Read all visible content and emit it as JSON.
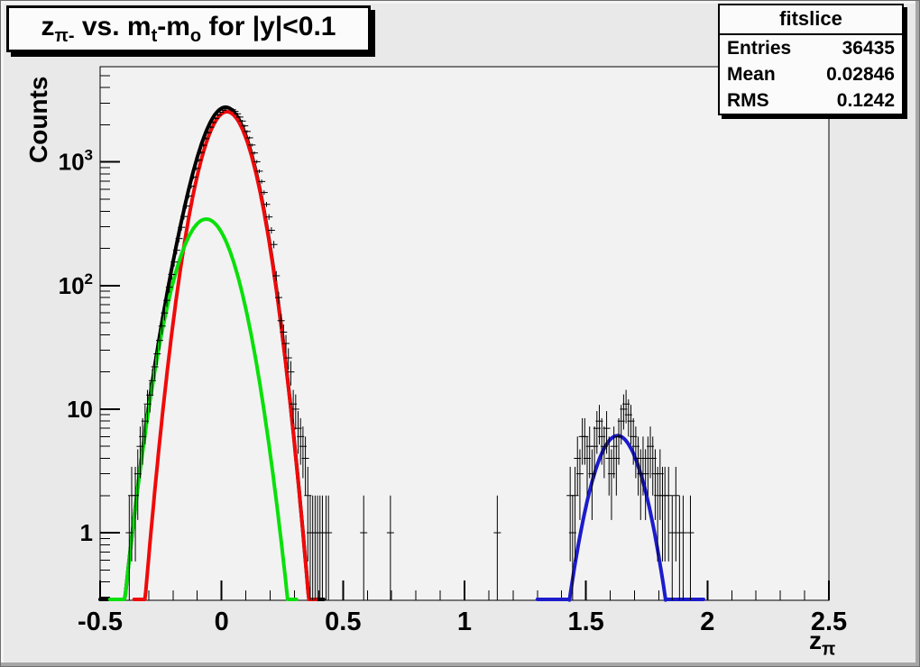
{
  "title": {
    "parts": [
      "z",
      "π-",
      " vs. m",
      "t",
      "-m",
      "o",
      " for |y|<0.1"
    ]
  },
  "stats": {
    "header": "fitslice",
    "rows": [
      {
        "label": "Entries",
        "value": "36435"
      },
      {
        "label": "Mean",
        "value": "0.02846"
      },
      {
        "label": "RMS",
        "value": "0.1242"
      }
    ]
  },
  "axes": {
    "y_title": "Counts",
    "x_title_base": "z",
    "x_title_sub": "π"
  },
  "colors": {
    "canvas_bg": "#e9e9e9",
    "frame_bg": "#f2f2f2",
    "axis": "#000000",
    "total_fit": "#000000",
    "signal_fit": "#ef0a0a",
    "background_fit": "#0ae00a",
    "second_peak_fit": "#1c1ccb",
    "data_points": "#000000"
  },
  "chart_data": {
    "type": "line",
    "subtype": "histogram-points-with-gaussian-fits",
    "title": "z_{pi-} vs. m_t-m_o for |y|<0.1",
    "xlabel": "z_pi",
    "ylabel": "Counts",
    "log_y": true,
    "xlim": [
      -0.5,
      2.5
    ],
    "ylim": [
      0.284,
      5900
    ],
    "x_major_step": 0.5,
    "x_minor_step": 0.1,
    "x_tick_labels": [
      {
        "v": -0.5,
        "label": "-0.5"
      },
      {
        "v": 0,
        "label": "0"
      },
      {
        "v": 0.5,
        "label": "0.5"
      },
      {
        "v": 1,
        "label": "1"
      },
      {
        "v": 1.5,
        "label": "1.5"
      },
      {
        "v": 2,
        "label": "2"
      },
      {
        "v": 2.5,
        "label": "2.5"
      }
    ],
    "y_tick_labels": [
      {
        "v": 1,
        "label": "1",
        "exp": ""
      },
      {
        "v": 10,
        "label": "10",
        "exp": ""
      },
      {
        "v": 100,
        "label": "10",
        "exp": "2"
      },
      {
        "v": 1000,
        "label": "10",
        "exp": "3"
      }
    ],
    "fits": [
      {
        "name": "total-fit",
        "color_key": "total_fit",
        "width": 4,
        "x_range": [
          -0.5,
          0.42
        ],
        "components": [
          {
            "A": 2550,
            "mu": 0.022,
            "sigma": 0.079
          },
          {
            "A": 345,
            "mu": -0.063,
            "sigma": 0.089
          }
        ]
      },
      {
        "name": "signal-gaussian-fit",
        "color_key": "signal_fit",
        "width": 4,
        "x_range": [
          -0.36,
          0.39
        ],
        "components": [
          {
            "A": 2550,
            "mu": 0.022,
            "sigma": 0.079
          }
        ]
      },
      {
        "name": "background-gaussian-fit",
        "color_key": "background_fit",
        "width": 4,
        "x_range": [
          -0.46,
          0.31
        ],
        "components": [
          {
            "A": 345,
            "mu": -0.063,
            "sigma": 0.089
          }
        ]
      },
      {
        "name": "second-peak-gaussian-fit",
        "color_key": "second_peak_fit",
        "width": 4,
        "x_range": [
          1.3,
          1.985
        ],
        "components": [
          {
            "A": 6.1,
            "mu": 1.63,
            "sigma": 0.08
          }
        ]
      }
    ],
    "points": [
      [
        -0.38,
        1
      ],
      [
        -0.37,
        2
      ],
      [
        -0.355,
        2
      ],
      [
        -0.345,
        3
      ],
      [
        -0.335,
        5
      ],
      [
        -0.325,
        6
      ],
      [
        -0.315,
        8
      ],
      [
        -0.305,
        11
      ],
      [
        -0.295,
        13
      ],
      [
        -0.285,
        17
      ],
      [
        -0.275,
        22
      ],
      [
        -0.265,
        28
      ],
      [
        -0.255,
        36
      ],
      [
        -0.245,
        47
      ],
      [
        -0.235,
        60
      ],
      [
        -0.225,
        76
      ],
      [
        -0.215,
        97
      ],
      [
        -0.205,
        123
      ],
      [
        -0.195,
        155
      ],
      [
        -0.185,
        193
      ],
      [
        -0.175,
        240
      ],
      [
        -0.165,
        296
      ],
      [
        -0.155,
        362
      ],
      [
        -0.145,
        440
      ],
      [
        -0.135,
        531
      ],
      [
        -0.125,
        636
      ],
      [
        -0.115,
        755
      ],
      [
        -0.105,
        888
      ],
      [
        -0.095,
        1036
      ],
      [
        -0.085,
        1196
      ],
      [
        -0.075,
        1367
      ],
      [
        -0.065,
        1546
      ],
      [
        -0.055,
        1729
      ],
      [
        -0.045,
        1911
      ],
      [
        -0.035,
        2088
      ],
      [
        -0.025,
        2252
      ],
      [
        -0.015,
        2399
      ],
      [
        -0.005,
        2522
      ],
      [
        0.005,
        2617
      ],
      [
        0.015,
        2679
      ],
      [
        0.025,
        2706
      ],
      [
        0.035,
        2696
      ],
      [
        0.045,
        2649
      ],
      [
        0.055,
        2567
      ],
      [
        0.065,
        2452
      ],
      [
        0.075,
        2309
      ],
      [
        0.085,
        2143
      ],
      [
        0.095,
        1960
      ],
      [
        0.105,
        1766
      ],
      [
        0.115,
        1568
      ],
      [
        0.125,
        1372
      ],
      [
        0.135,
        1183
      ],
      [
        0.145,
        1005
      ],
      [
        0.155,
        842
      ],
      [
        0.165,
        695
      ],
      [
        0.175,
        566
      ],
      [
        0.185,
        454
      ],
      [
        0.195,
        359
      ],
      [
        0.205,
        280
      ],
      [
        0.215,
        215
      ],
      [
        0.225,
        120
      ],
      [
        0.235,
        80
      ],
      [
        0.245,
        52
      ],
      [
        0.255,
        42
      ],
      [
        0.265,
        34
      ],
      [
        0.275,
        26
      ],
      [
        0.285,
        20
      ],
      [
        0.295,
        11
      ],
      [
        0.305,
        10
      ],
      [
        0.315,
        7
      ],
      [
        0.325,
        6
      ],
      [
        0.335,
        5
      ],
      [
        0.345,
        4
      ],
      [
        0.355,
        2
      ],
      [
        0.365,
        1
      ],
      [
        0.375,
        1
      ],
      [
        0.385,
        1
      ],
      [
        0.395,
        1
      ],
      [
        0.405,
        1
      ],
      [
        0.415,
        1
      ],
      [
        0.43,
        1
      ],
      [
        0.44,
        1
      ],
      [
        0.585,
        1
      ],
      [
        0.695,
        1
      ],
      [
        1.135,
        1
      ],
      [
        1.435,
        2
      ],
      [
        1.445,
        1
      ],
      [
        1.455,
        2
      ],
      [
        1.465,
        4
      ],
      [
        1.475,
        3
      ],
      [
        1.485,
        6
      ],
      [
        1.495,
        6
      ],
      [
        1.505,
        4
      ],
      [
        1.515,
        5
      ],
      [
        1.525,
        3
      ],
      [
        1.535,
        5
      ],
      [
        1.545,
        7
      ],
      [
        1.555,
        8
      ],
      [
        1.565,
        6
      ],
      [
        1.575,
        5
      ],
      [
        1.585,
        7
      ],
      [
        1.595,
        4
      ],
      [
        1.605,
        3
      ],
      [
        1.615,
        5
      ],
      [
        1.625,
        4
      ],
      [
        1.635,
        6
      ],
      [
        1.645,
        8
      ],
      [
        1.655,
        10
      ],
      [
        1.665,
        11
      ],
      [
        1.675,
        9
      ],
      [
        1.685,
        8
      ],
      [
        1.695,
        6
      ],
      [
        1.705,
        5
      ],
      [
        1.715,
        4
      ],
      [
        1.725,
        3
      ],
      [
        1.735,
        4
      ],
      [
        1.745,
        3
      ],
      [
        1.755,
        4
      ],
      [
        1.765,
        5
      ],
      [
        1.775,
        4
      ],
      [
        1.785,
        3
      ],
      [
        1.795,
        2
      ],
      [
        1.805,
        3
      ],
      [
        1.815,
        2
      ],
      [
        1.825,
        2
      ],
      [
        1.84,
        2
      ],
      [
        1.855,
        1
      ],
      [
        1.87,
        2
      ],
      [
        1.885,
        1
      ],
      [
        1.9,
        1
      ],
      [
        1.93,
        1
      ]
    ],
    "frame": {
      "l": 110,
      "t": 73,
      "r": 918,
      "b": 665
    },
    "stats_box": {
      "name": "fitslice",
      "entries": 36435,
      "mean": 0.02846,
      "rms": 0.1242
    },
    "legend_position": "none",
    "grid": false
  }
}
